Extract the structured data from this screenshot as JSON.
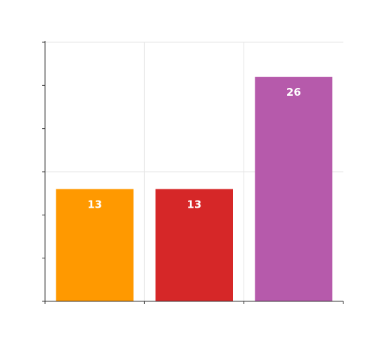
{
  "chart_data": {
    "type": "bar",
    "title": "",
    "xlabel": "",
    "ylabel": "",
    "ylim": [
      0,
      30
    ],
    "grid": true,
    "show_tick_labels": false,
    "categories": [
      "",
      "",
      ""
    ],
    "values": [
      13,
      13,
      26
    ],
    "data_labels": [
      "13",
      "13",
      "26"
    ],
    "colors": [
      "#ff9900",
      "#d62728",
      "#b65aab"
    ],
    "axis_color": "#333333",
    "grid_color": "#e6e6e6"
  }
}
